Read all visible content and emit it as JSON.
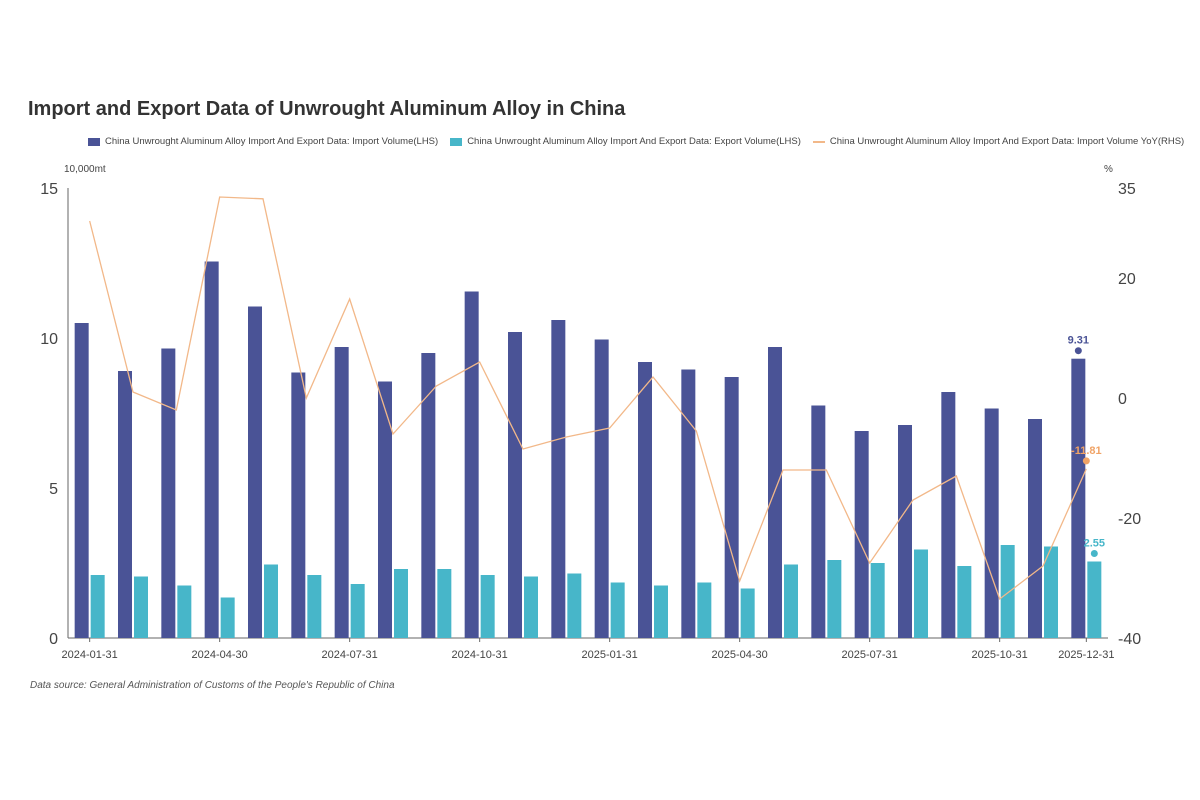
{
  "chart_data": {
    "type": "bar",
    "title": "Import and Export Data of Unwrought Aluminum Alloy in China",
    "left_unit": "10,000mt",
    "right_unit": "%",
    "left_ylim": [
      0,
      15
    ],
    "left_ticks": [
      "0",
      "5",
      "10",
      "15"
    ],
    "right_ylim": [
      -40,
      35
    ],
    "right_ticks": [
      "-40",
      "-20",
      "0",
      "20",
      "35"
    ],
    "categories": [
      "2024-01-31",
      "2024-02-29",
      "2024-03-31",
      "2024-04-30",
      "2024-05-31",
      "2024-06-30",
      "2024-07-31",
      "2024-08-31",
      "2024-09-30",
      "2024-10-31",
      "2024-11-30",
      "2024-12-31",
      "2025-01-31",
      "2025-02-28",
      "2025-03-31",
      "2025-04-30",
      "2025-05-31",
      "2025-06-30",
      "2025-07-31",
      "2025-08-31",
      "2025-09-30",
      "2025-10-31",
      "2025-11-30",
      "2025-12-31"
    ],
    "x_tick_labels": [
      {
        "index": 0,
        "label": "2024-01-31"
      },
      {
        "index": 3,
        "label": "2024-04-30"
      },
      {
        "index": 6,
        "label": "2024-07-31"
      },
      {
        "index": 9,
        "label": "2024-10-31"
      },
      {
        "index": 12,
        "label": "2025-01-31"
      },
      {
        "index": 15,
        "label": "2025-04-30"
      },
      {
        "index": 18,
        "label": "2025-07-31"
      },
      {
        "index": 21,
        "label": "2025-10-31"
      },
      {
        "index": 23,
        "label": "2025-12-31"
      }
    ],
    "series": [
      {
        "name": "China Unwrought Aluminum Alloy Import And Export Data: Import Volume(LHS)",
        "axis": "left",
        "kind": "bar",
        "color": "#4a5396",
        "values": [
          10.5,
          8.9,
          9.65,
          12.55,
          11.05,
          8.85,
          9.7,
          8.55,
          9.5,
          11.55,
          10.2,
          10.6,
          9.95,
          9.2,
          8.95,
          8.7,
          9.7,
          7.75,
          6.9,
          7.1,
          8.2,
          7.65,
          7.3,
          9.31
        ]
      },
      {
        "name": "China Unwrought Aluminum Alloy Import And Export Data: Export Volume(LHS)",
        "axis": "left",
        "kind": "bar",
        "color": "#47b6c9",
        "values": [
          2.1,
          2.05,
          1.75,
          1.35,
          2.45,
          2.1,
          1.8,
          2.3,
          2.3,
          2.1,
          2.05,
          2.15,
          1.85,
          1.75,
          1.85,
          1.65,
          2.45,
          2.6,
          2.5,
          2.95,
          2.4,
          3.1,
          3.05,
          2.55
        ]
      },
      {
        "name": "China Unwrought Aluminum Alloy Import And Export Data: Import Volume YoY(RHS)",
        "axis": "right",
        "kind": "line",
        "color": "#f2b889",
        "values": [
          29.5,
          1.0,
          -2.0,
          33.5,
          33.2,
          0.0,
          16.5,
          -6.0,
          2.0,
          6.0,
          -8.5,
          -6.5,
          -5.0,
          3.5,
          -5.5,
          -30.5,
          -12.0,
          -12.0,
          -27.5,
          -17.0,
          -13.0,
          -33.5,
          -28.0,
          -11.81
        ]
      }
    ],
    "annotations": [
      {
        "series": 0,
        "index": 23,
        "label": "9.31",
        "color": "#4a5396"
      },
      {
        "series": 1,
        "index": 23,
        "label": "2.55",
        "color": "#47b6c9"
      },
      {
        "series": 2,
        "index": 23,
        "label": "-11.81",
        "color": "#f0a366"
      }
    ]
  },
  "legend": {
    "import_label": "China Unwrought Aluminum Alloy Import And Export Data: Import Volume(LHS)",
    "export_label": "China Unwrought Aluminum Alloy Import And Export Data: Export Volume(LHS)",
    "yoy_label": "China Unwrought Aluminum Alloy Import And Export Data: Import Volume YoY(RHS)"
  },
  "source": "Data source:  General Administration of Customs of the People's Republic of China"
}
